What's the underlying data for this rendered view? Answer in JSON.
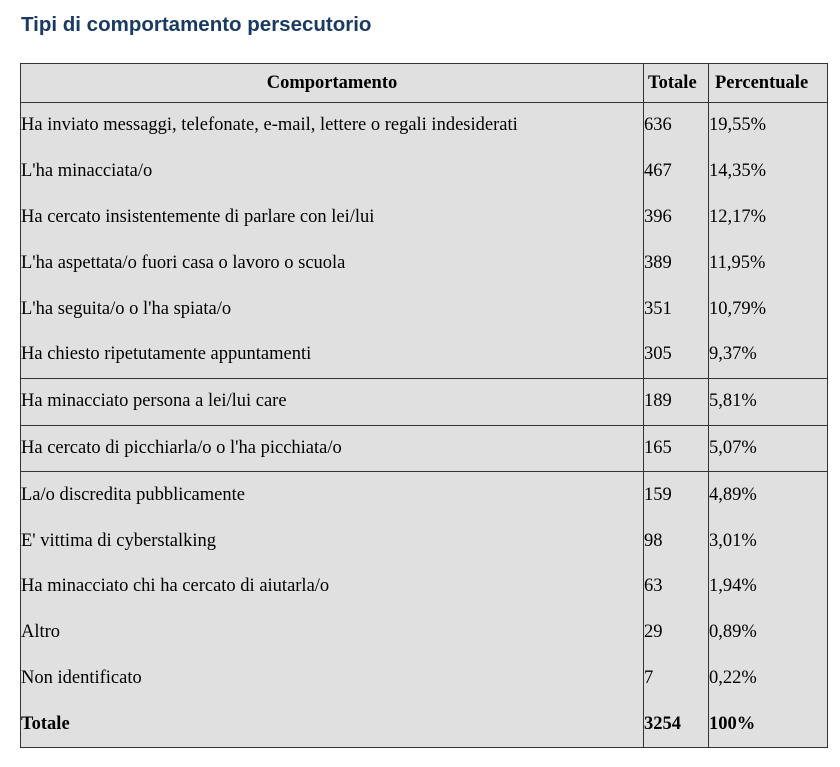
{
  "title": "Tipi di comportamento persecutorio",
  "table": {
    "headers": {
      "comportamento": "Comportamento",
      "totale": "Totale",
      "percentuale": "Percentuale"
    },
    "rows": [
      {
        "label": "Ha inviato messaggi, telefonate, e-mail, lettere o regali indesiderati",
        "totale": "636",
        "percentuale": "19,55%"
      },
      {
        "label": "L'ha minacciata/o",
        "totale": "467",
        "percentuale": "14,35%"
      },
      {
        "label": "Ha cercato insistentemente di parlare con lei/lui",
        "totale": "396",
        "percentuale": "12,17%"
      },
      {
        "label": "L'ha aspettata/o fuori casa o lavoro o scuola",
        "totale": "389",
        "percentuale": "11,95%"
      },
      {
        "label": "L'ha seguita/o o l'ha spiata/o",
        "totale": "351",
        "percentuale": "10,79%"
      },
      {
        "label": "Ha chiesto ripetutamente appuntamenti",
        "totale": "305",
        "percentuale": "9,37%"
      },
      {
        "label": "Ha minacciato persona a lei/lui care",
        "totale": "189",
        "percentuale": "5,81%"
      },
      {
        "label": "Ha cercato di picchiarla/o o l'ha picchiata/o",
        "totale": "165",
        "percentuale": "5,07%"
      },
      {
        "label": "La/o discredita pubblicamente",
        "totale": "159",
        "percentuale": "4,89%"
      },
      {
        "label": "E' vittima di cyberstalking",
        "totale": "98",
        "percentuale": "3,01%"
      },
      {
        "label": "Ha minacciato chi ha cercato di aiutarla/o",
        "totale": "63",
        "percentuale": "1,94%"
      },
      {
        "label": "Altro",
        "totale": "29",
        "percentuale": "0,89%"
      },
      {
        "label": "Non identificato",
        "totale": "7",
        "percentuale": "0,22%"
      }
    ],
    "total_row": {
      "label": "Totale",
      "totale": "3254",
      "percentuale": "100%"
    }
  }
}
